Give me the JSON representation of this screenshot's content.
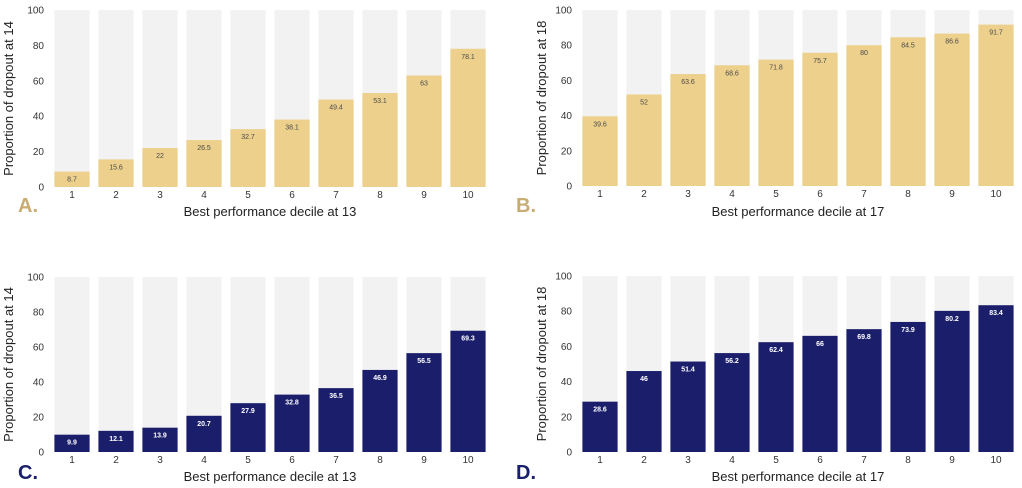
{
  "figure_colors": {
    "background_bar": "#f2f2f2",
    "panel_letter_color": "#c9ac72"
  },
  "chart_data": [
    {
      "panel": "A.",
      "type": "bar",
      "categories": [
        "1",
        "2",
        "3",
        "4",
        "5",
        "6",
        "7",
        "8",
        "9",
        "10"
      ],
      "values": [
        8.7,
        15.6,
        22,
        26.5,
        32.7,
        38.1,
        49.4,
        53.1,
        63,
        78.1
      ],
      "value_labels": [
        "8.7",
        "15.6",
        "22",
        "26.5",
        "32.7",
        "38.1",
        "49.4",
        "53.1",
        "63",
        "78.1"
      ],
      "xlabel": "Best performance decile at 13",
      "ylabel": "Proportion of dropout at 14",
      "ylim": [
        0,
        100
      ],
      "yticks": [
        "0",
        "20",
        "40",
        "60",
        "80",
        "100"
      ],
      "bar_color": "#ecd08c",
      "label_color": "#4a4a4a",
      "letter_color": "#c9ac72"
    },
    {
      "panel": "B.",
      "type": "bar",
      "categories": [
        "1",
        "2",
        "3",
        "4",
        "5",
        "6",
        "7",
        "8",
        "9",
        "10"
      ],
      "values": [
        39.6,
        52,
        63.6,
        68.6,
        71.8,
        75.7,
        80,
        84.5,
        86.6,
        91.7
      ],
      "value_labels": [
        "39.6",
        "52",
        "63.6",
        "68.6",
        "71.8",
        "75.7",
        "80",
        "84.5",
        "86.6",
        "91.7"
      ],
      "xlabel": "Best performance decile at 17",
      "ylabel": "Proportion of dropout at 18",
      "ylim": [
        0,
        100
      ],
      "yticks": [
        "0",
        "20",
        "40",
        "60",
        "80",
        "100"
      ],
      "bar_color": "#ecd08c",
      "label_color": "#4a4a4a",
      "letter_color": "#c9ac72"
    },
    {
      "panel": "C.",
      "type": "bar",
      "categories": [
        "1",
        "2",
        "3",
        "4",
        "5",
        "6",
        "7",
        "8",
        "9",
        "10"
      ],
      "values": [
        9.9,
        12.1,
        13.9,
        20.7,
        27.9,
        32.8,
        36.5,
        46.9,
        56.5,
        69.3
      ],
      "value_labels": [
        "9.9",
        "12.1",
        "13.9",
        "20.7",
        "27.9",
        "32.8",
        "36.5",
        "46.9",
        "56.5",
        "69.3"
      ],
      "xlabel": "Best performance decile at 13",
      "ylabel": "Proportion of dropout at 14",
      "ylim": [
        0,
        100
      ],
      "yticks": [
        "0",
        "20",
        "40",
        "60",
        "80",
        "100"
      ],
      "bar_color": "#1b1f6b",
      "label_color": "#ffffff",
      "letter_color": "#1b1f6b"
    },
    {
      "panel": "D.",
      "type": "bar",
      "categories": [
        "1",
        "2",
        "3",
        "4",
        "5",
        "6",
        "7",
        "8",
        "9",
        "10"
      ],
      "values": [
        28.6,
        46,
        51.4,
        56.2,
        62.4,
        66,
        69.8,
        73.9,
        80.2,
        83.4
      ],
      "value_labels": [
        "28.6",
        "46",
        "51.4",
        "56.2",
        "62.4",
        "66",
        "69.8",
        "73.9",
        "80.2",
        "83.4"
      ],
      "xlabel": "Best performance decile at 17",
      "ylabel": "Proportion of dropout at 18",
      "ylim": [
        0,
        100
      ],
      "yticks": [
        "0",
        "20",
        "40",
        "60",
        "80",
        "100"
      ],
      "bar_color": "#1b1f6b",
      "label_color": "#ffffff",
      "letter_color": "#1b1f6b"
    }
  ]
}
